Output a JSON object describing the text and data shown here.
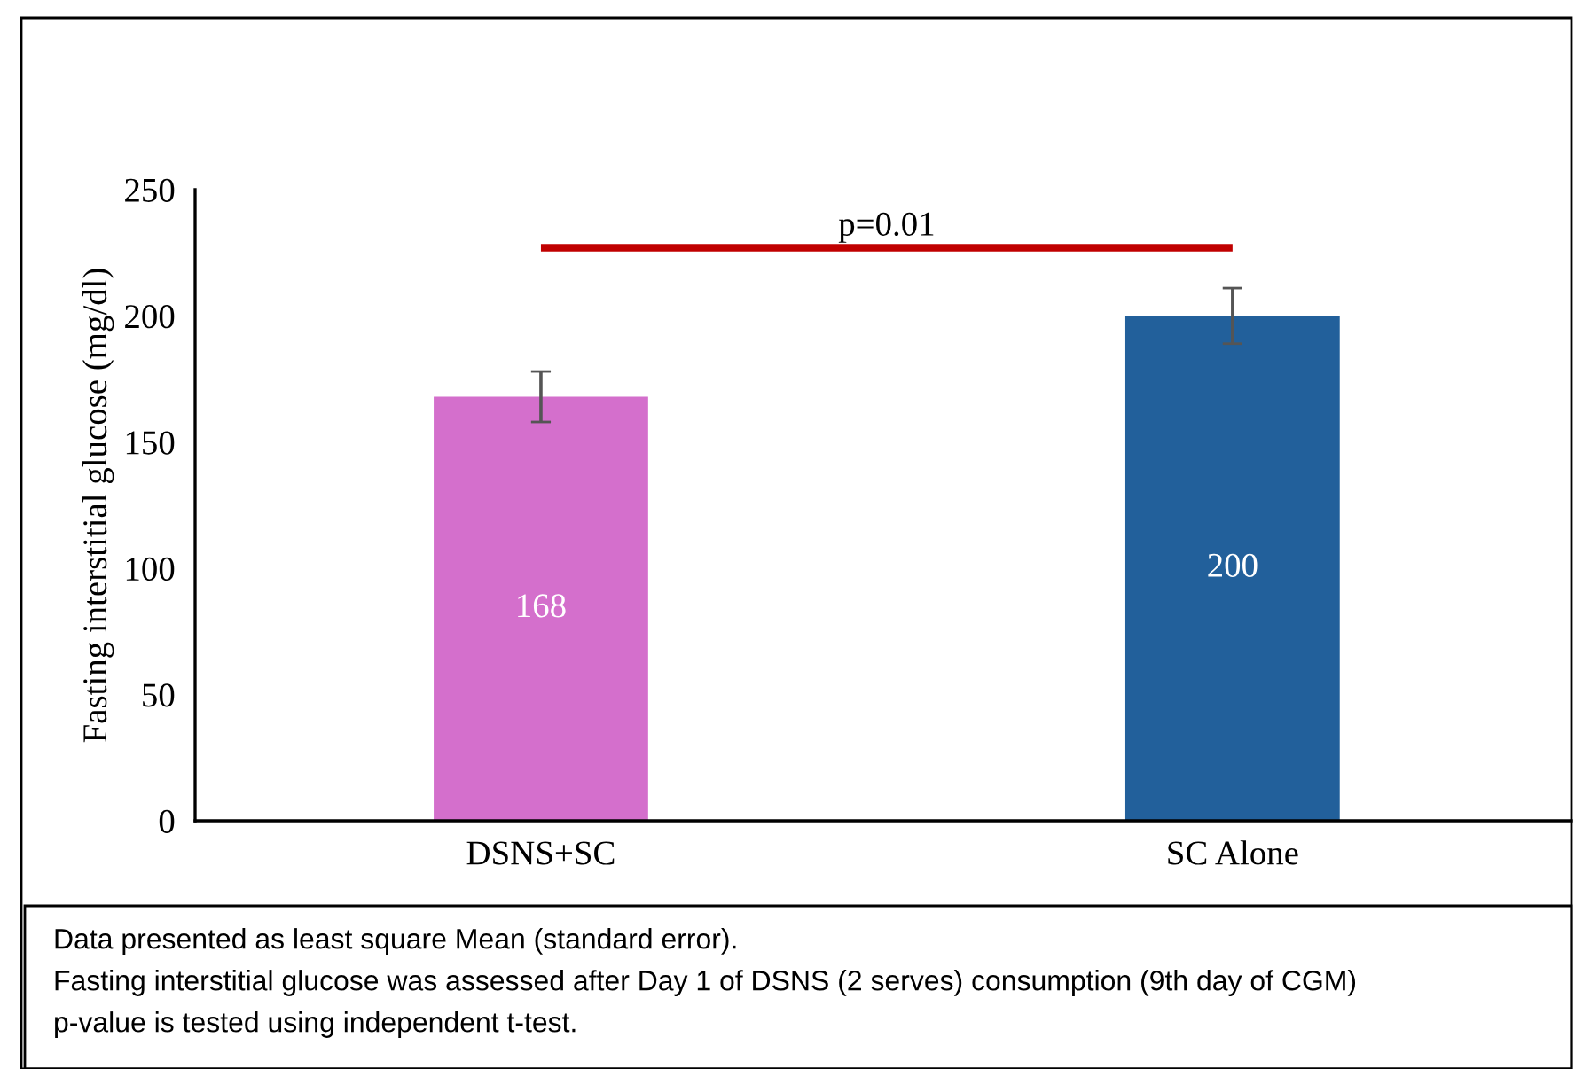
{
  "chart_data": {
    "type": "bar",
    "ylabel": "Fasting interstitial glucose (mg/dl)",
    "categories": [
      "DSNS+SC",
      "SC Alone"
    ],
    "values": [
      168,
      200
    ],
    "colors": [
      "#d46fcc",
      "#22609b"
    ],
    "errors": [
      10,
      11
    ],
    "data_labels": true,
    "ylim": [
      0,
      250
    ],
    "yticks": [
      0,
      50,
      100,
      150,
      200,
      250
    ],
    "grid": false,
    "legend": false,
    "annotations": [
      "p=0.01",
      "Data presented as least square Mean (standard error).",
      "Fasting interstitial glucose was assessed after Day 1 of DSNS (2 serves) consumption (9th day of CGM)",
      "p-value is tested using independent t-test."
    ]
  }
}
